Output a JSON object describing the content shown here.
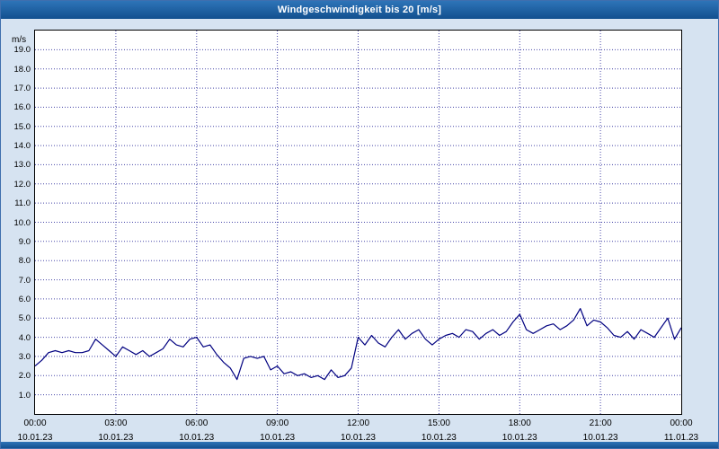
{
  "title": "Windgeschwindigkeit bis 20 [m/s]",
  "colors": {
    "titlebar": "#1a5fa8",
    "background": "#d6e3f1",
    "grid": "#4646a8",
    "line": "#000080",
    "plot_border": "#000000"
  },
  "chart_data": {
    "type": "line",
    "title": "Windgeschwindigkeit bis 20 [m/s]",
    "xlabel": "",
    "ylabel": "m/s",
    "ylim": [
      0,
      20
    ],
    "xlim_hours": [
      0,
      24
    ],
    "grid": true,
    "legend": "none",
    "y_ticks": [
      "1.0",
      "2.0",
      "3.0",
      "4.0",
      "5.0",
      "6.0",
      "7.0",
      "8.0",
      "9.0",
      "10.0",
      "11.0",
      "12.0",
      "13.0",
      "14.0",
      "15.0",
      "16.0",
      "17.0",
      "18.0",
      "19.0"
    ],
    "x_ticks": [
      {
        "hour": 0,
        "label": "00:00",
        "date": "10.01.23"
      },
      {
        "hour": 3,
        "label": "03:00",
        "date": "10.01.23"
      },
      {
        "hour": 6,
        "label": "06:00",
        "date": "10.01.23"
      },
      {
        "hour": 9,
        "label": "09:00",
        "date": "10.01.23"
      },
      {
        "hour": 12,
        "label": "12:00",
        "date": "10.01.23"
      },
      {
        "hour": 15,
        "label": "15:00",
        "date": "10.01.23"
      },
      {
        "hour": 18,
        "label": "18:00",
        "date": "10.01.23"
      },
      {
        "hour": 21,
        "label": "21:00",
        "date": "10.01.23"
      },
      {
        "hour": 24,
        "label": "00:00",
        "date": "11.01.23"
      }
    ],
    "series": [
      {
        "name": "Windgeschwindigkeit",
        "color": "#000080",
        "x_start_hour": 0,
        "x_step_hours": 0.25,
        "values": [
          2.5,
          2.8,
          3.2,
          3.3,
          3.2,
          3.3,
          3.2,
          3.2,
          3.3,
          3.9,
          3.6,
          3.3,
          3.0,
          3.5,
          3.3,
          3.1,
          3.3,
          3.0,
          3.2,
          3.4,
          3.9,
          3.6,
          3.5,
          3.9,
          4.0,
          3.5,
          3.6,
          3.1,
          2.7,
          2.4,
          1.8,
          2.9,
          3.0,
          2.9,
          3.0,
          2.3,
          2.5,
          2.1,
          2.2,
          2.0,
          2.1,
          1.9,
          2.0,
          1.8,
          2.3,
          1.9,
          2.0,
          2.4,
          4.0,
          3.6,
          4.1,
          3.7,
          3.5,
          4.0,
          4.4,
          3.9,
          4.2,
          4.4,
          3.9,
          3.6,
          3.9,
          4.1,
          4.2,
          4.0,
          4.4,
          4.3,
          3.9,
          4.2,
          4.4,
          4.1,
          4.3,
          4.8,
          5.2,
          4.4,
          4.2,
          4.4,
          4.6,
          4.7,
          4.4,
          4.6,
          4.9,
          5.5,
          4.6,
          4.9,
          4.8,
          4.5,
          4.1,
          4.0,
          4.3,
          3.9,
          4.4,
          4.2,
          4.0,
          4.5,
          5.0,
          3.9,
          4.5
        ]
      }
    ]
  }
}
